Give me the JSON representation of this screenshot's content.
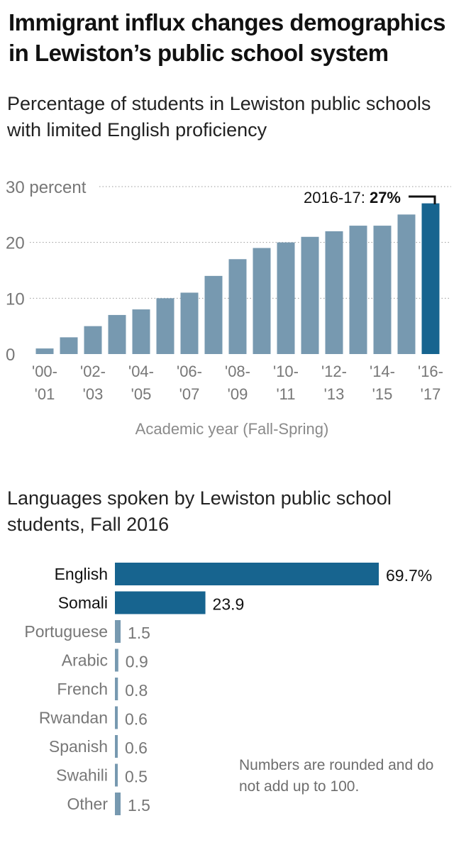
{
  "title": "Immigrant influx changes demographics in Lewiston’s public school system",
  "chart_data": [
    {
      "type": "bar",
      "title": "Percentage of students in Lewiston public schools with limited English proficiency",
      "xlabel": "Academic year (Fall-Spring)",
      "ylabel": "",
      "y_tick_labels": [
        "0",
        "10",
        "20",
        "30 percent"
      ],
      "y_ticks": [
        0,
        10,
        20,
        30
      ],
      "ylim": [
        0,
        30
      ],
      "grid": true,
      "categories": [
        "2000-01",
        "2001-02",
        "2002-03",
        "2003-04",
        "2004-05",
        "2005-06",
        "2006-07",
        "2007-08",
        "2008-09",
        "2009-10",
        "2010-11",
        "2011-12",
        "2012-13",
        "2013-14",
        "2014-15",
        "2015-16",
        "2016-17"
      ],
      "x_tick_labels": [
        [
          "'00-",
          "'01"
        ],
        [
          "'02-",
          "'03"
        ],
        [
          "'04-",
          "'05"
        ],
        [
          "'06-",
          "'07"
        ],
        [
          "'08-",
          "'09"
        ],
        [
          "'10-",
          "'11"
        ],
        [
          "'12-",
          "'13"
        ],
        [
          "'14-",
          "'15"
        ],
        [
          "'16-",
          "'17"
        ]
      ],
      "x_tick_positions": [
        0,
        2,
        4,
        6,
        8,
        10,
        12,
        14,
        16
      ],
      "values": [
        1,
        3,
        5,
        7,
        8,
        10,
        11,
        14,
        17,
        19,
        20,
        21,
        22,
        23,
        23,
        25,
        27
      ],
      "annotation": {
        "prefix": "2016-17: ",
        "value": "27%",
        "category_index": 16
      },
      "colors": {
        "bar": "#7799b0",
        "highlight": "#17648f",
        "grid": "#9a9a9a",
        "axis_text": "#777777"
      }
    },
    {
      "type": "bar",
      "orientation": "horizontal",
      "title": "Languages spoken by Lewiston public school students, Fall 2016",
      "categories": [
        "English",
        "Somali",
        "Portuguese",
        "Arabic",
        "French",
        "Rwandan",
        "Spanish",
        "Swahili",
        "Other"
      ],
      "values": [
        69.7,
        23.9,
        1.5,
        0.9,
        0.8,
        0.6,
        0.6,
        0.5,
        1.5
      ],
      "value_labels": [
        "69.7%",
        "23.9",
        "1.5",
        "0.9",
        "0.8",
        "0.6",
        "0.6",
        "0.5",
        "1.5"
      ],
      "highlighted": [
        true,
        true,
        false,
        false,
        false,
        false,
        false,
        false,
        false
      ],
      "note": "Numbers are rounded and do not add up to 100.",
      "colors": {
        "highlight": "#17648f",
        "other": "#7799b0",
        "highlight_label": "#111111",
        "other_label": "#777777"
      }
    }
  ]
}
